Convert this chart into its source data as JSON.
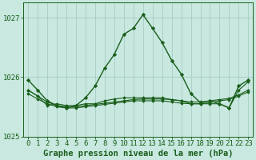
{
  "title": "Graphe pression niveau de la mer (hPa)",
  "hours": [
    0,
    1,
    2,
    3,
    4,
    5,
    6,
    7,
    8,
    9,
    10,
    11,
    12,
    13,
    14,
    15,
    16,
    17,
    18,
    19,
    20,
    21,
    22,
    23
  ],
  "curve_main": [
    1025.95,
    1025.78,
    1025.6,
    1025.52,
    1025.48,
    1025.52,
    1025.65,
    1025.85,
    1026.15,
    1026.38,
    1026.72,
    1026.82,
    1027.05,
    1026.82,
    1026.58,
    1026.28,
    1026.05,
    1025.72,
    1025.57,
    1025.6,
    1025.55,
    1025.48,
    1025.85,
    1025.95
  ],
  "curve_flat1": [
    1025.78,
    1025.68,
    1025.58,
    1025.52,
    1025.5,
    1025.5,
    1025.52,
    1025.54,
    1025.56,
    1025.58,
    1025.6,
    1025.62,
    1025.63,
    1025.63,
    1025.63,
    1025.62,
    1025.6,
    1025.58,
    1025.58,
    1025.6,
    1025.62,
    1025.64,
    1025.7,
    1025.78
  ],
  "curve_flat2": [
    1025.72,
    1025.63,
    1025.55,
    1025.5,
    1025.48,
    1025.48,
    1025.5,
    1025.52,
    1025.54,
    1025.56,
    1025.58,
    1025.6,
    1025.6,
    1025.6,
    1025.6,
    1025.58,
    1025.56,
    1025.55,
    1025.55,
    1025.57,
    1025.6,
    1025.62,
    1025.68,
    1025.75
  ],
  "curve_zigzag": [
    1025.78,
    1025.68,
    1025.52,
    1025.55,
    1025.52,
    1025.52,
    1025.55,
    1025.55,
    1025.6,
    1025.63,
    1025.65,
    1025.65,
    1025.65,
    1025.65,
    1025.65,
    1025.62,
    1025.6,
    1025.55,
    1025.55,
    1025.55,
    1025.55,
    1025.48,
    1025.78,
    1025.92
  ],
  "ylim": [
    1025.0,
    1027.25
  ],
  "yticks": [
    1025,
    1026,
    1027
  ],
  "bg_color": "#c8e8e0",
  "grid_color": "#a0c8c0",
  "line_color": "#1a5e1a",
  "tick_fontsize": 6.5,
  "label_fontsize": 7.5
}
